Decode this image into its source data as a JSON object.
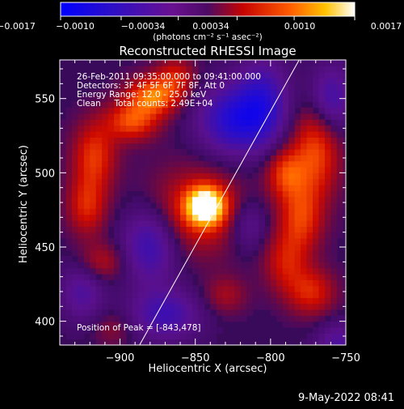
{
  "chart_data": {
    "type": "heatmap",
    "title": "Reconstructed RHESSI Image",
    "xlabel": "Heliocentric X (arcsec)",
    "ylabel": "Heliocentric Y (arcsec)",
    "x_ticks": [
      -900,
      -850,
      -800,
      -750
    ],
    "y_ticks": [
      400,
      450,
      500,
      550
    ],
    "x_tick_labels": [
      "−900",
      "−850",
      "−800",
      "−750"
    ],
    "y_tick_labels": [
      "400",
      "450",
      "500",
      "550"
    ],
    "xlim": [
      -940,
      -750
    ],
    "ylim": [
      384,
      576
    ],
    "colorbar": {
      "ticks": [
        -0.0017,
        -0.001,
        -0.00034,
        0.00034,
        0.001,
        0.0017
      ],
      "tick_labels": [
        "−0.0017",
        "−0.0010",
        "−0.00034",
        "0.00034",
        "0.0010",
        "0.0017"
      ],
      "range": [
        -0.0017,
        0.0017
      ],
      "unit_label": "(photons cm⁻² s⁻¹ asec⁻²)"
    },
    "annotations": [
      "26-Feb-2011 09:35:00.000 to 09:41:00.000",
      "Detectors: 3F 4F 5F 6F 7F 8F, Att 0",
      "Energy Range: 12.0 - 25.0 keV",
      "Clean     Total counts: 2.49E+04"
    ],
    "peak_label": "Position of Peak = [-843,478]",
    "peak": [
      -843,
      478
    ],
    "limb_line": [
      [
        -887,
        384
      ],
      [
        -781,
        576
      ]
    ],
    "sources": [
      {
        "x": -843,
        "y": 478,
        "amp": 0.0017,
        "sx": 9,
        "sy": 9
      },
      {
        "x": -850,
        "y": 474,
        "amp": 0.0007,
        "sx": 22,
        "sy": 20
      },
      {
        "x": -878,
        "y": 552,
        "amp": 0.0011,
        "sx": 12,
        "sy": 9
      },
      {
        "x": -892,
        "y": 535,
        "amp": 0.0009,
        "sx": 12,
        "sy": 9
      },
      {
        "x": -917,
        "y": 512,
        "amp": 0.0008,
        "sx": 10,
        "sy": 16
      },
      {
        "x": -922,
        "y": 478,
        "amp": 0.0007,
        "sx": 9,
        "sy": 14
      },
      {
        "x": -912,
        "y": 440,
        "amp": 0.0005,
        "sx": 11,
        "sy": 9
      },
      {
        "x": -863,
        "y": 565,
        "amp": 0.0006,
        "sx": 9,
        "sy": 9
      },
      {
        "x": -770,
        "y": 515,
        "amp": 0.0009,
        "sx": 11,
        "sy": 22
      },
      {
        "x": -790,
        "y": 500,
        "amp": 0.0008,
        "sx": 9,
        "sy": 12
      },
      {
        "x": -780,
        "y": 470,
        "amp": 0.0008,
        "sx": 10,
        "sy": 16
      },
      {
        "x": -790,
        "y": 440,
        "amp": 0.0006,
        "sx": 10,
        "sy": 14
      },
      {
        "x": -773,
        "y": 420,
        "amp": 0.0007,
        "sx": 11,
        "sy": 11
      },
      {
        "x": -830,
        "y": 418,
        "amp": 0.0004,
        "sx": 10,
        "sy": 9
      },
      {
        "x": -905,
        "y": 395,
        "amp": 0.0003,
        "sx": 9,
        "sy": 8
      },
      {
        "x": -825,
        "y": 536,
        "amp": -0.0011,
        "sx": 16,
        "sy": 16
      },
      {
        "x": -805,
        "y": 548,
        "amp": -0.0009,
        "sx": 12,
        "sy": 20
      },
      {
        "x": -880,
        "y": 452,
        "amp": -0.0009,
        "sx": 13,
        "sy": 18
      },
      {
        "x": -870,
        "y": 405,
        "amp": -0.0008,
        "sx": 16,
        "sy": 12
      },
      {
        "x": -760,
        "y": 550,
        "amp": -0.0008,
        "sx": 10,
        "sy": 16
      },
      {
        "x": -925,
        "y": 420,
        "amp": -0.0006,
        "sx": 10,
        "sy": 14
      },
      {
        "x": -815,
        "y": 465,
        "amp": -0.0005,
        "sx": 9,
        "sy": 12
      },
      {
        "x": -755,
        "y": 385,
        "amp": -0.0006,
        "sx": 10,
        "sy": 10
      }
    ]
  },
  "footer": {
    "timestamp": "9-May-2022 08:41"
  },
  "colors": {
    "background": "#000000",
    "axis": "#ffffff",
    "text": "#ffffff",
    "limb_line": "#ffffff"
  }
}
